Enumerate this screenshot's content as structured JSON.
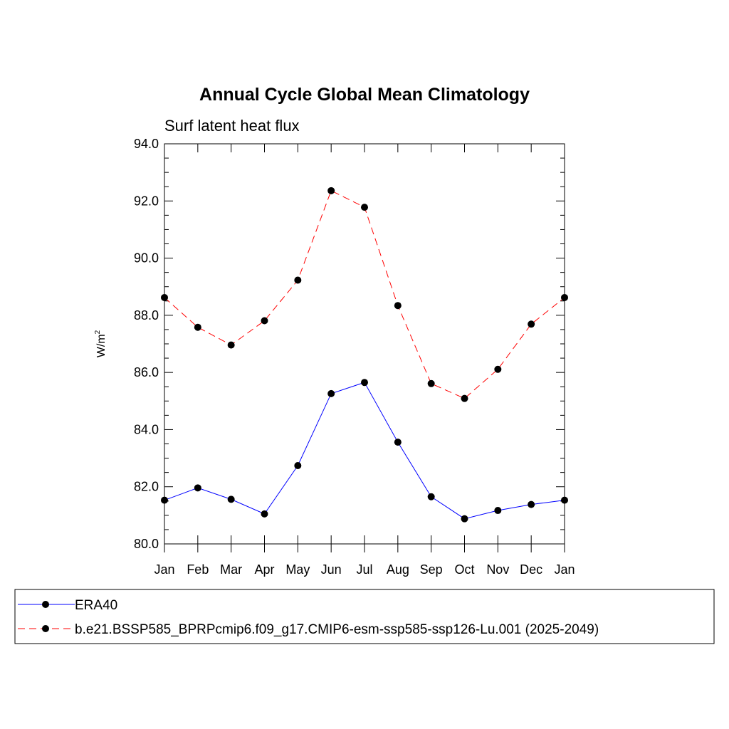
{
  "chart_data": {
    "type": "line",
    "title": "Annual Cycle Global Mean Climatology",
    "subtitle": "Surf latent heat flux",
    "ylabel": "W/m",
    "ylabel_sup": "2",
    "ylim": [
      80.0,
      94.0
    ],
    "yticks": [
      "80.0",
      "82.0",
      "84.0",
      "86.0",
      "88.0",
      "90.0",
      "92.0",
      "94.0"
    ],
    "categories": [
      "Jan",
      "Feb",
      "Mar",
      "Apr",
      "May",
      "Jun",
      "Jul",
      "Aug",
      "Sep",
      "Oct",
      "Nov",
      "Dec",
      "Jan"
    ],
    "grid": false,
    "legend_position": "bottom",
    "series": [
      {
        "name": "ERA40",
        "color": "#0000ff",
        "dash": "solid",
        "values": [
          81.53,
          81.96,
          81.56,
          81.05,
          82.74,
          85.26,
          85.65,
          83.56,
          81.65,
          80.88,
          81.17,
          81.38,
          81.53
        ]
      },
      {
        "name": "b.e21.BSSP585_BPRPcmip6.f09_g17.CMIP6-esm-ssp585-ssp126-Lu.001 (2025-2049)",
        "color": "#ff0000",
        "dash": "dashed",
        "values": [
          88.62,
          87.58,
          86.96,
          87.81,
          89.23,
          92.36,
          91.78,
          88.34,
          85.61,
          85.09,
          86.11,
          87.69,
          88.62
        ]
      }
    ]
  }
}
